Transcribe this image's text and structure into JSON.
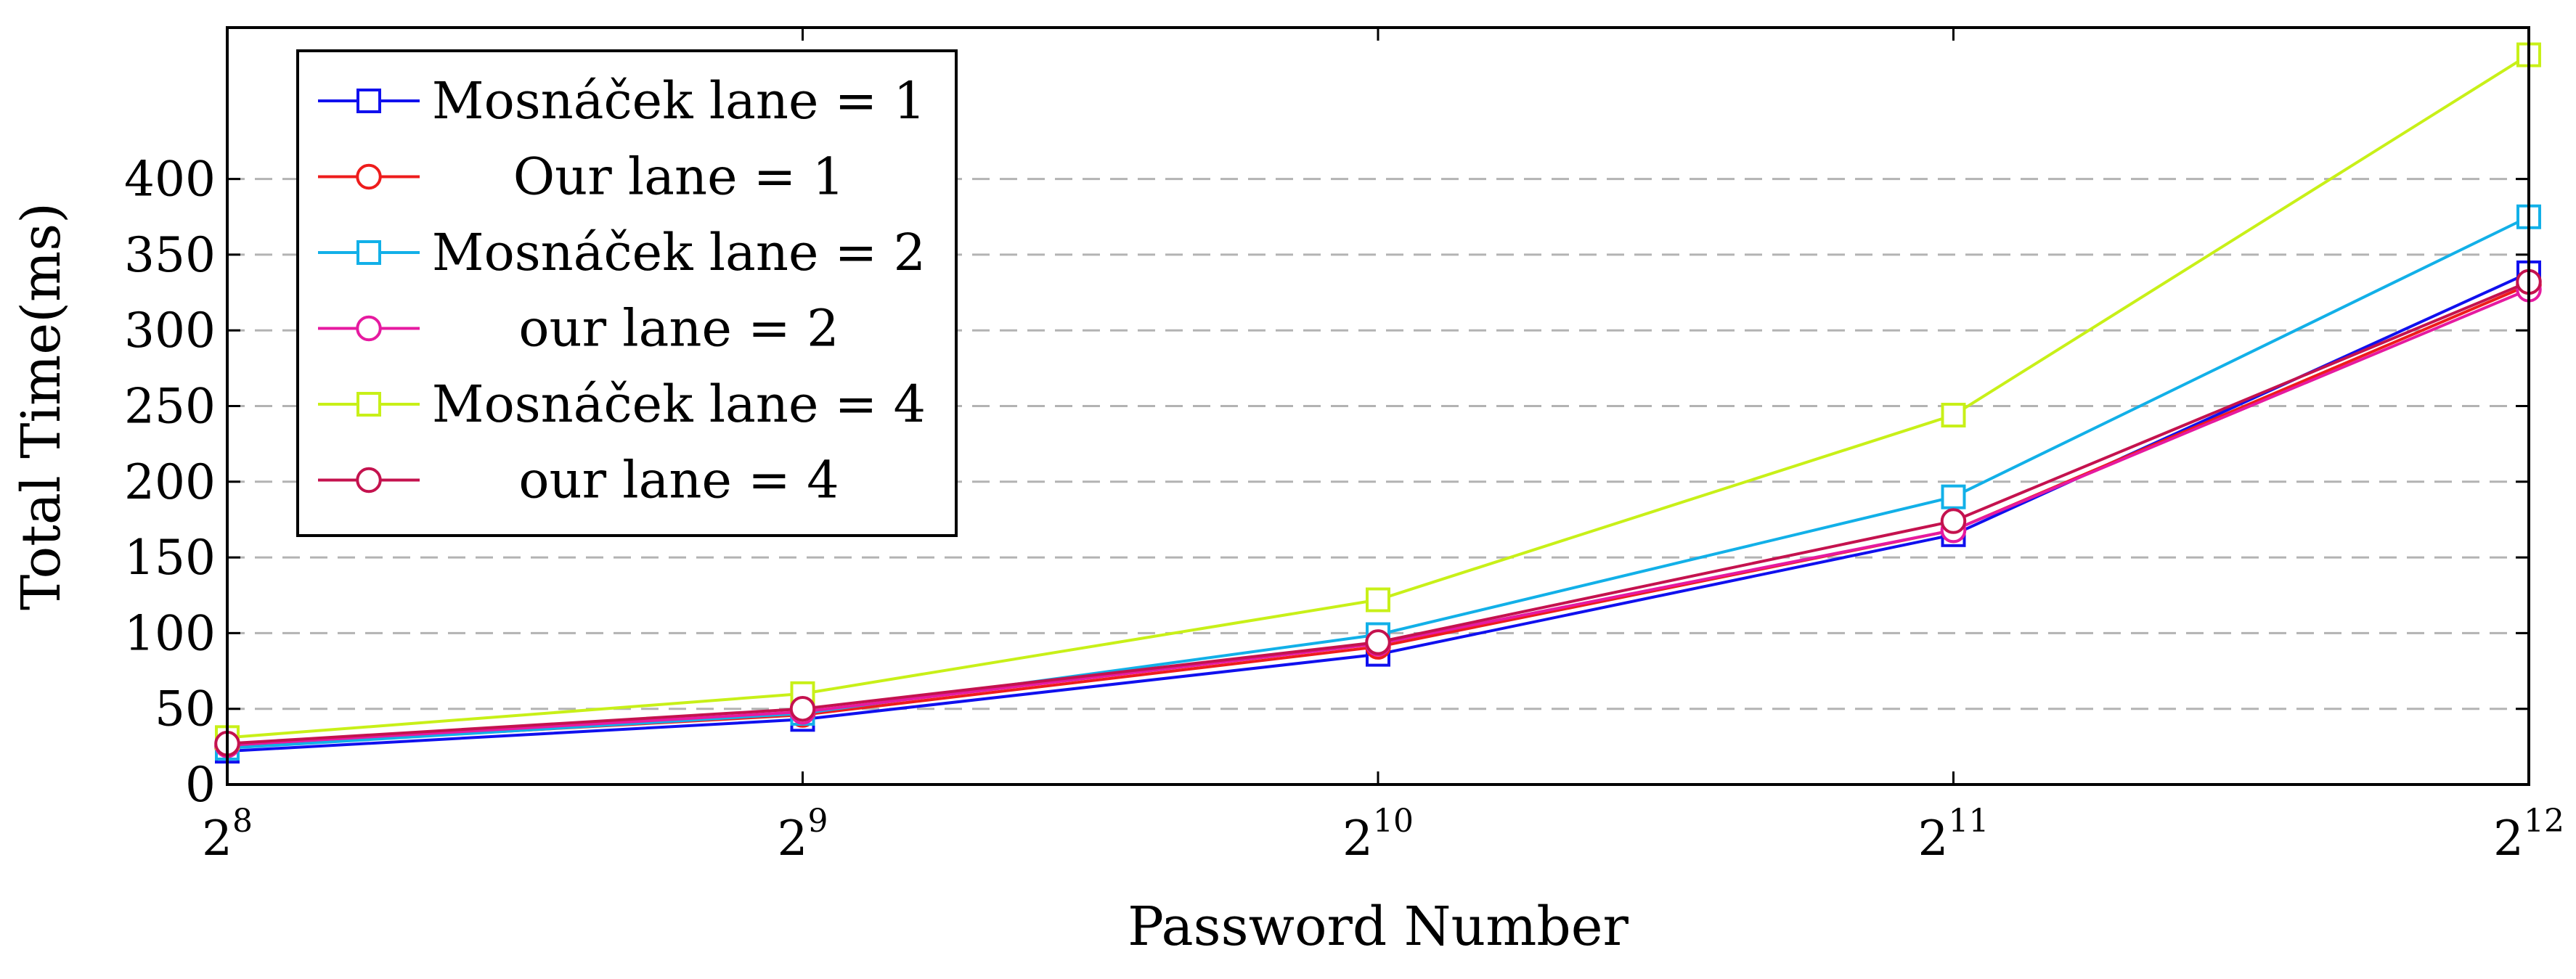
{
  "chart_data": {
    "type": "line",
    "xlabel": "Password Number",
    "ylabel": "Total Time(ms)",
    "x_base": "2",
    "x_exponents": [
      "8",
      "9",
      "10",
      "11",
      "12"
    ],
    "x_scale": "log2",
    "ylim": [
      0,
      500
    ],
    "yticks": [
      "0",
      "50",
      "100",
      "150",
      "200",
      "250",
      "300",
      "350",
      "400"
    ],
    "grid": "horizontal dashed",
    "legend_position": "top-left",
    "series": [
      {
        "name": "Mosnáček lane = 1",
        "color": "#1010ee",
        "marker": "square",
        "values": [
          22,
          43,
          86,
          165,
          338
        ]
      },
      {
        "name": "Our lane = 1",
        "color": "#ee1c1c",
        "marker": "circle",
        "values": [
          25,
          46,
          91,
          168,
          330
        ]
      },
      {
        "name": "Mosnáček lane = 2",
        "color": "#12b0e8",
        "marker": "square",
        "values": [
          24,
          47,
          99,
          190,
          375
        ]
      },
      {
        "name": "our lane = 2",
        "color": "#e61aa0",
        "marker": "circle",
        "values": [
          26,
          48,
          93,
          168,
          327
        ]
      },
      {
        "name": "Mosnáček lane = 4",
        "color": "#c8f018",
        "marker": "square",
        "values": [
          31,
          60,
          122,
          244,
          482
        ]
      },
      {
        "name": "our lane = 4",
        "color": "#c4124e",
        "marker": "circle",
        "values": [
          27,
          50,
          94,
          174,
          332
        ]
      }
    ]
  }
}
